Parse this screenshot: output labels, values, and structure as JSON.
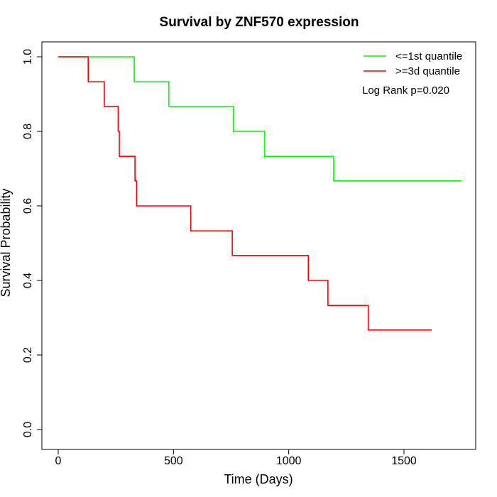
{
  "chart_data": {
    "type": "line",
    "subtype": "kaplan-meier step curve",
    "title": "Survival by ZNF570 expression",
    "xlabel": "Time (Days)",
    "ylabel": "Survival Probability",
    "xlim": [
      0,
      1800
    ],
    "ylim": [
      0,
      1
    ],
    "x_ticks": [
      0,
      500,
      1000,
      1500
    ],
    "x_tick_labels": [
      "0",
      "500",
      "1000",
      "1500"
    ],
    "y_ticks": [
      0,
      0.2,
      0.4,
      0.6,
      0.8,
      1.0
    ],
    "y_tick_labels": [
      "0.0",
      "0.2",
      "0.4",
      "0.6",
      "0.8",
      "1.0"
    ],
    "grid": false,
    "legend_position": "top-right",
    "annotation": "Log Rank p=0.020",
    "series": [
      {
        "name": "<=1st quantile",
        "color": "#00ff00",
        "x": [
          0,
          330,
          480,
          760,
          895,
          1195,
          1750
        ],
        "y": [
          1.0,
          0.933,
          0.867,
          0.8,
          0.733,
          0.667,
          0.667
        ]
      },
      {
        "name": ">=3d quantile",
        "color": "#ff0000",
        "x": [
          0,
          130,
          200,
          260,
          265,
          333,
          340,
          575,
          755,
          1085,
          1170,
          1345,
          1620
        ],
        "y": [
          1.0,
          0.933,
          0.867,
          0.8,
          0.733,
          0.667,
          0.6,
          0.533,
          0.467,
          0.4,
          0.333,
          0.267,
          0.267
        ]
      }
    ]
  }
}
